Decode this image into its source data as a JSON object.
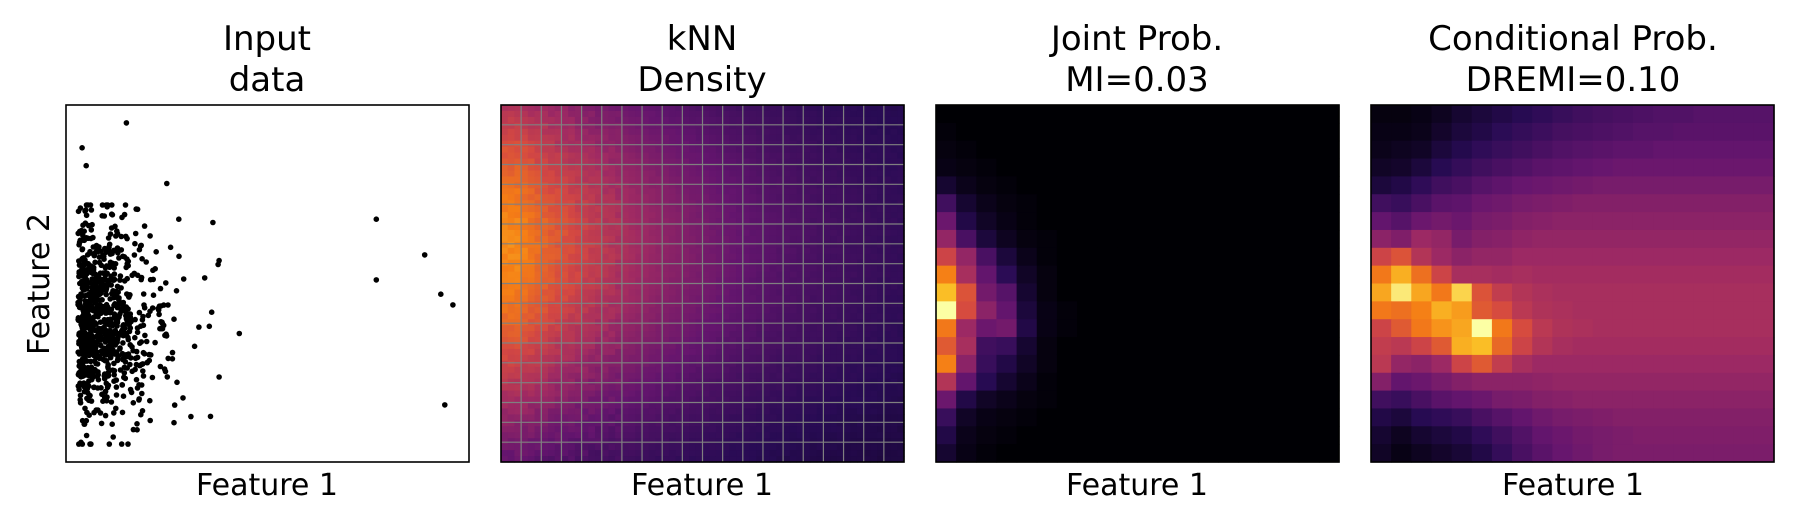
{
  "figure": {
    "panels": [
      {
        "title1": "Input",
        "title2": "data",
        "xlabel": "Feature 1",
        "ylabel": "Feature 2"
      },
      {
        "title1": "kNN",
        "title2": "Density",
        "xlabel": "Feature 1",
        "ylabel": ""
      },
      {
        "title1": "Joint Prob.",
        "title2": "MI=0.03",
        "xlabel": "Feature 1",
        "ylabel": ""
      },
      {
        "title1": "Conditional Prob.",
        "title2": "DREMI=0.10",
        "xlabel": "Feature 1",
        "ylabel": ""
      }
    ]
  },
  "chart_data": [
    {
      "type": "scatter",
      "title": "Input data",
      "xlabel": "Feature 1",
      "ylabel": "Feature 2",
      "ticks": "none",
      "color": "#000000",
      "note_values": "normalized 0-1 in data range (axes have no tick labels)",
      "outliers": [
        {
          "x": 0.15,
          "y": 0.95
        },
        {
          "x": 0.77,
          "y": 0.68
        },
        {
          "x": 0.89,
          "y": 0.58
        },
        {
          "x": 0.77,
          "y": 0.51
        },
        {
          "x": 0.93,
          "y": 0.47
        },
        {
          "x": 0.96,
          "y": 0.44
        },
        {
          "x": 0.94,
          "y": 0.16
        },
        {
          "x": 0.25,
          "y": 0.78
        },
        {
          "x": 0.28,
          "y": 0.68
        },
        {
          "x": 0.43,
          "y": 0.36
        },
        {
          "x": 0.04,
          "y": 0.88
        },
        {
          "x": 0.05,
          "y": 0.83
        }
      ],
      "cluster": {
        "x_range": [
          0.03,
          0.38
        ],
        "y_range": [
          0.05,
          0.72
        ],
        "n_points": 900
      }
    },
    {
      "type": "heatmap",
      "title": "kNN Density",
      "xlabel": "Feature 1",
      "colormap": "inferno",
      "grid": true,
      "grid_color": "#808080",
      "cols": 20,
      "rows": 18,
      "peak_x": 0.04,
      "peak_y": 0.6
    },
    {
      "type": "heatmap",
      "title": "Joint Prob.",
      "subtitle": "MI=0.03",
      "xlabel": "Feature 1",
      "colormap": "inferno",
      "grid": false,
      "cols": 20,
      "rows": 20,
      "values": [
        [
          0.0,
          0.0,
          0.0,
          0.0,
          0.0,
          0.0,
          0.0,
          0.0,
          0.0,
          0.0,
          0.0,
          0.0,
          0.0,
          0.0,
          0.0,
          0.0,
          0.0,
          0.0,
          0.0,
          0.0
        ],
        [
          0.01,
          0.0,
          0.0,
          0.0,
          0.0,
          0.0,
          0.0,
          0.0,
          0.0,
          0.0,
          0.0,
          0.0,
          0.0,
          0.0,
          0.0,
          0.0,
          0.0,
          0.0,
          0.0,
          0.0
        ],
        [
          0.02,
          0.01,
          0.0,
          0.0,
          0.0,
          0.0,
          0.0,
          0.0,
          0.0,
          0.0,
          0.0,
          0.0,
          0.0,
          0.0,
          0.0,
          0.0,
          0.0,
          0.0,
          0.0,
          0.0
        ],
        [
          0.03,
          0.02,
          0.01,
          0.0,
          0.0,
          0.0,
          0.0,
          0.0,
          0.0,
          0.0,
          0.0,
          0.0,
          0.0,
          0.0,
          0.0,
          0.0,
          0.0,
          0.0,
          0.0,
          0.0
        ],
        [
          0.08,
          0.04,
          0.02,
          0.01,
          0.0,
          0.0,
          0.0,
          0.0,
          0.0,
          0.0,
          0.0,
          0.0,
          0.0,
          0.0,
          0.0,
          0.0,
          0.0,
          0.0,
          0.0,
          0.0
        ],
        [
          0.2,
          0.08,
          0.04,
          0.02,
          0.01,
          0.0,
          0.0,
          0.0,
          0.0,
          0.0,
          0.0,
          0.0,
          0.0,
          0.0,
          0.0,
          0.0,
          0.0,
          0.0,
          0.0,
          0.0
        ],
        [
          0.3,
          0.12,
          0.06,
          0.03,
          0.01,
          0.0,
          0.0,
          0.0,
          0.0,
          0.0,
          0.0,
          0.0,
          0.0,
          0.0,
          0.0,
          0.0,
          0.0,
          0.0,
          0.0,
          0.0
        ],
        [
          0.4,
          0.22,
          0.1,
          0.05,
          0.02,
          0.01,
          0.0,
          0.0,
          0.0,
          0.0,
          0.0,
          0.0,
          0.0,
          0.0,
          0.0,
          0.0,
          0.0,
          0.0,
          0.0,
          0.0
        ],
        [
          0.55,
          0.4,
          0.22,
          0.1,
          0.04,
          0.01,
          0.0,
          0.0,
          0.0,
          0.0,
          0.0,
          0.0,
          0.0,
          0.0,
          0.0,
          0.0,
          0.0,
          0.0,
          0.0,
          0.0
        ],
        [
          0.72,
          0.45,
          0.28,
          0.15,
          0.06,
          0.02,
          0.0,
          0.0,
          0.0,
          0.0,
          0.0,
          0.0,
          0.0,
          0.0,
          0.0,
          0.0,
          0.0,
          0.0,
          0.0,
          0.0
        ],
        [
          0.85,
          0.6,
          0.32,
          0.25,
          0.08,
          0.02,
          0.0,
          0.0,
          0.0,
          0.0,
          0.0,
          0.0,
          0.0,
          0.0,
          0.0,
          0.0,
          0.0,
          0.0,
          0.0,
          0.0
        ],
        [
          1.0,
          0.58,
          0.38,
          0.28,
          0.1,
          0.03,
          0.01,
          0.0,
          0.0,
          0.0,
          0.0,
          0.0,
          0.0,
          0.0,
          0.0,
          0.0,
          0.0,
          0.0,
          0.0,
          0.0
        ],
        [
          0.7,
          0.42,
          0.3,
          0.32,
          0.12,
          0.03,
          0.01,
          0.0,
          0.0,
          0.0,
          0.0,
          0.0,
          0.0,
          0.0,
          0.0,
          0.0,
          0.0,
          0.0,
          0.0,
          0.0
        ],
        [
          0.62,
          0.45,
          0.2,
          0.18,
          0.08,
          0.02,
          0.0,
          0.0,
          0.0,
          0.0,
          0.0,
          0.0,
          0.0,
          0.0,
          0.0,
          0.0,
          0.0,
          0.0,
          0.0,
          0.0
        ],
        [
          0.72,
          0.38,
          0.18,
          0.12,
          0.06,
          0.02,
          0.0,
          0.0,
          0.0,
          0.0,
          0.0,
          0.0,
          0.0,
          0.0,
          0.0,
          0.0,
          0.0,
          0.0,
          0.0,
          0.0
        ],
        [
          0.48,
          0.28,
          0.14,
          0.08,
          0.04,
          0.01,
          0.0,
          0.0,
          0.0,
          0.0,
          0.0,
          0.0,
          0.0,
          0.0,
          0.0,
          0.0,
          0.0,
          0.0,
          0.0,
          0.0
        ],
        [
          0.3,
          0.12,
          0.06,
          0.04,
          0.02,
          0.01,
          0.0,
          0.0,
          0.0,
          0.0,
          0.0,
          0.0,
          0.0,
          0.0,
          0.0,
          0.0,
          0.0,
          0.0,
          0.0,
          0.0
        ],
        [
          0.18,
          0.06,
          0.03,
          0.02,
          0.01,
          0.0,
          0.0,
          0.0,
          0.0,
          0.0,
          0.0,
          0.0,
          0.0,
          0.0,
          0.0,
          0.0,
          0.0,
          0.0,
          0.0,
          0.0
        ],
        [
          0.12,
          0.04,
          0.02,
          0.01,
          0.0,
          0.0,
          0.0,
          0.0,
          0.0,
          0.0,
          0.0,
          0.0,
          0.0,
          0.0,
          0.0,
          0.0,
          0.0,
          0.0,
          0.0,
          0.0
        ],
        [
          0.08,
          0.03,
          0.01,
          0.0,
          0.0,
          0.0,
          0.0,
          0.0,
          0.0,
          0.0,
          0.0,
          0.0,
          0.0,
          0.0,
          0.0,
          0.0,
          0.0,
          0.0,
          0.0,
          0.0
        ]
      ]
    },
    {
      "type": "heatmap",
      "title": "Conditional Prob.",
      "subtitle": "DREMI=0.10",
      "xlabel": "Feature 1",
      "colormap": "inferno",
      "grid": false,
      "cols": 20,
      "rows": 20,
      "values": [
        [
          0.02,
          0.02,
          0.03,
          0.05,
          0.08,
          0.1,
          0.12,
          0.14,
          0.16,
          0.18,
          0.2,
          0.21,
          0.22,
          0.23,
          0.24,
          0.24,
          0.25,
          0.25,
          0.25,
          0.25
        ],
        [
          0.03,
          0.03,
          0.04,
          0.07,
          0.1,
          0.12,
          0.15,
          0.17,
          0.19,
          0.21,
          0.22,
          0.23,
          0.24,
          0.25,
          0.25,
          0.26,
          0.26,
          0.26,
          0.26,
          0.26
        ],
        [
          0.04,
          0.05,
          0.06,
          0.1,
          0.13,
          0.16,
          0.18,
          0.2,
          0.22,
          0.24,
          0.25,
          0.26,
          0.27,
          0.27,
          0.28,
          0.28,
          0.28,
          0.28,
          0.28,
          0.28
        ],
        [
          0.06,
          0.07,
          0.1,
          0.14,
          0.17,
          0.2,
          0.22,
          0.24,
          0.26,
          0.27,
          0.28,
          0.29,
          0.3,
          0.3,
          0.3,
          0.3,
          0.3,
          0.3,
          0.3,
          0.3
        ],
        [
          0.1,
          0.12,
          0.16,
          0.2,
          0.22,
          0.25,
          0.27,
          0.29,
          0.3,
          0.31,
          0.32,
          0.33,
          0.33,
          0.33,
          0.33,
          0.33,
          0.33,
          0.33,
          0.33,
          0.33
        ],
        [
          0.2,
          0.18,
          0.22,
          0.26,
          0.27,
          0.3,
          0.31,
          0.33,
          0.34,
          0.35,
          0.36,
          0.36,
          0.36,
          0.36,
          0.36,
          0.36,
          0.36,
          0.36,
          0.36,
          0.36
        ],
        [
          0.28,
          0.25,
          0.3,
          0.32,
          0.3,
          0.33,
          0.34,
          0.36,
          0.37,
          0.38,
          0.38,
          0.38,
          0.38,
          0.38,
          0.38,
          0.38,
          0.38,
          0.38,
          0.38,
          0.38
        ],
        [
          0.38,
          0.35,
          0.42,
          0.4,
          0.33,
          0.36,
          0.37,
          0.39,
          0.4,
          0.4,
          0.4,
          0.4,
          0.4,
          0.4,
          0.4,
          0.4,
          0.4,
          0.4,
          0.4,
          0.4
        ],
        [
          0.55,
          0.6,
          0.48,
          0.42,
          0.38,
          0.4,
          0.4,
          0.42,
          0.42,
          0.42,
          0.42,
          0.42,
          0.42,
          0.42,
          0.42,
          0.42,
          0.42,
          0.42,
          0.42,
          0.42
        ],
        [
          0.7,
          0.82,
          0.68,
          0.55,
          0.45,
          0.45,
          0.44,
          0.45,
          0.44,
          0.44,
          0.44,
          0.44,
          0.44,
          0.44,
          0.44,
          0.44,
          0.44,
          0.44,
          0.44,
          0.44
        ],
        [
          0.8,
          0.95,
          0.8,
          0.7,
          0.9,
          0.6,
          0.52,
          0.48,
          0.46,
          0.45,
          0.45,
          0.45,
          0.45,
          0.45,
          0.45,
          0.45,
          0.45,
          0.45,
          0.45,
          0.45
        ],
        [
          0.7,
          0.68,
          0.72,
          0.82,
          0.78,
          0.62,
          0.58,
          0.5,
          0.47,
          0.46,
          0.45,
          0.45,
          0.45,
          0.45,
          0.45,
          0.45,
          0.45,
          0.45,
          0.45,
          0.45
        ],
        [
          0.55,
          0.62,
          0.7,
          0.76,
          0.8,
          1.0,
          0.7,
          0.58,
          0.5,
          0.47,
          0.46,
          0.45,
          0.45,
          0.45,
          0.45,
          0.45,
          0.45,
          0.45,
          0.45,
          0.45
        ],
        [
          0.52,
          0.5,
          0.55,
          0.62,
          0.82,
          0.85,
          0.66,
          0.55,
          0.48,
          0.45,
          0.44,
          0.44,
          0.44,
          0.44,
          0.44,
          0.44,
          0.44,
          0.44,
          0.44,
          0.44
        ],
        [
          0.5,
          0.4,
          0.38,
          0.42,
          0.55,
          0.62,
          0.52,
          0.45,
          0.42,
          0.42,
          0.42,
          0.42,
          0.42,
          0.42,
          0.42,
          0.42,
          0.42,
          0.42,
          0.42,
          0.42
        ],
        [
          0.36,
          0.28,
          0.3,
          0.33,
          0.36,
          0.38,
          0.38,
          0.38,
          0.39,
          0.4,
          0.4,
          0.4,
          0.4,
          0.4,
          0.4,
          0.4,
          0.4,
          0.4,
          0.4,
          0.4
        ],
        [
          0.2,
          0.18,
          0.22,
          0.26,
          0.28,
          0.3,
          0.33,
          0.34,
          0.36,
          0.37,
          0.38,
          0.38,
          0.38,
          0.38,
          0.38,
          0.38,
          0.38,
          0.38,
          0.38,
          0.38
        ],
        [
          0.12,
          0.1,
          0.14,
          0.16,
          0.18,
          0.22,
          0.25,
          0.28,
          0.31,
          0.33,
          0.34,
          0.35,
          0.36,
          0.36,
          0.36,
          0.36,
          0.36,
          0.36,
          0.36,
          0.36
        ],
        [
          0.08,
          0.05,
          0.08,
          0.1,
          0.12,
          0.16,
          0.2,
          0.24,
          0.28,
          0.3,
          0.32,
          0.33,
          0.34,
          0.35,
          0.35,
          0.35,
          0.35,
          0.35,
          0.35,
          0.35
        ],
        [
          0.06,
          0.03,
          0.05,
          0.07,
          0.09,
          0.12,
          0.17,
          0.22,
          0.26,
          0.29,
          0.31,
          0.33,
          0.34,
          0.34,
          0.34,
          0.34,
          0.34,
          0.34,
          0.34,
          0.34
        ]
      ]
    }
  ]
}
